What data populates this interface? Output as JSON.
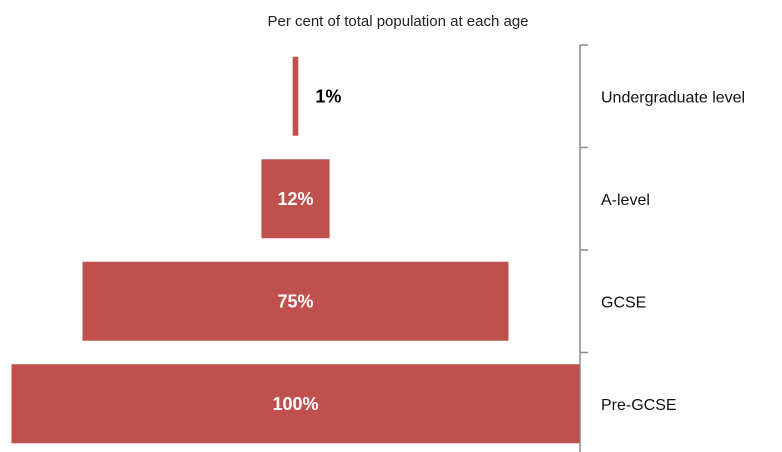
{
  "colors": {
    "bar": "#c0504d",
    "axis": "#8c8c8c",
    "label_inside": "#ffffff",
    "label_outside": "#000000"
  },
  "chart_data": {
    "type": "bar",
    "orientation": "horizontal",
    "layout": "centered-pyramid",
    "title": "Per cent of total population at each age",
    "categories": [
      "Undergraduate level",
      "A-level",
      "GCSE",
      "Pre-GCSE"
    ],
    "values": [
      1,
      12,
      75,
      100
    ],
    "data_labels": [
      "1%",
      "12%",
      "75%",
      "100%"
    ],
    "xlim": [
      0,
      100
    ],
    "unit": "%",
    "grid": false,
    "legend": "none"
  }
}
